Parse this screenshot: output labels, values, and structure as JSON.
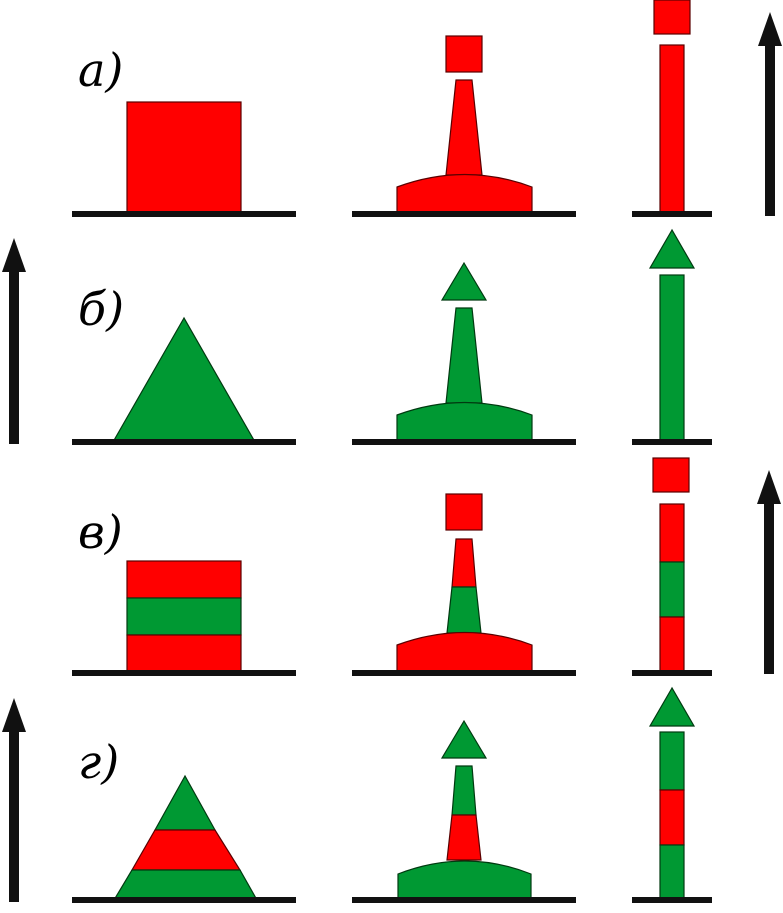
{
  "colors": {
    "red": "#ff0000",
    "green": "#009933",
    "line": "#111111",
    "background": "#ffffff"
  },
  "rows": [
    {
      "label": "а)",
      "shore_arrow": "up-arrow-right",
      "daymark": {
        "shape": "square",
        "bands": [
          "red"
        ]
      },
      "buoy": {
        "topmark": "square",
        "topmark_color": "red",
        "body_bands_top_to_bottom": [
          "red"
        ],
        "base_color": "red"
      },
      "spar": {
        "topmark": "square",
        "topmark_color": "red",
        "bands_top_to_bottom": [
          "red"
        ]
      }
    },
    {
      "label": "б)",
      "shore_arrow": "up-arrow-left",
      "daymark": {
        "shape": "triangle",
        "bands": [
          "green"
        ]
      },
      "buoy": {
        "topmark": "triangle",
        "topmark_color": "green",
        "body_bands_top_to_bottom": [
          "green"
        ],
        "base_color": "green"
      },
      "spar": {
        "topmark": "triangle",
        "topmark_color": "green",
        "bands_top_to_bottom": [
          "green"
        ]
      }
    },
    {
      "label": "в)",
      "shore_arrow": "up-arrow-right",
      "daymark": {
        "shape": "square",
        "bands": [
          "red",
          "green",
          "red"
        ]
      },
      "buoy": {
        "topmark": "square",
        "topmark_color": "red",
        "body_bands_top_to_bottom": [
          "red",
          "green"
        ],
        "base_color": "red"
      },
      "spar": {
        "topmark": "square",
        "topmark_color": "red",
        "bands_top_to_bottom": [
          "red",
          "green",
          "red"
        ]
      }
    },
    {
      "label": "г)",
      "shore_arrow": "up-arrow-left",
      "daymark": {
        "shape": "triangle",
        "bands": [
          "green",
          "red",
          "green"
        ]
      },
      "buoy": {
        "topmark": "triangle",
        "topmark_color": "green",
        "body_bands_top_to_bottom": [
          "green",
          "red"
        ],
        "base_color": "green"
      },
      "spar": {
        "topmark": "triangle",
        "topmark_color": "green",
        "bands_top_to_bottom": [
          "green",
          "red",
          "green"
        ]
      }
    }
  ]
}
